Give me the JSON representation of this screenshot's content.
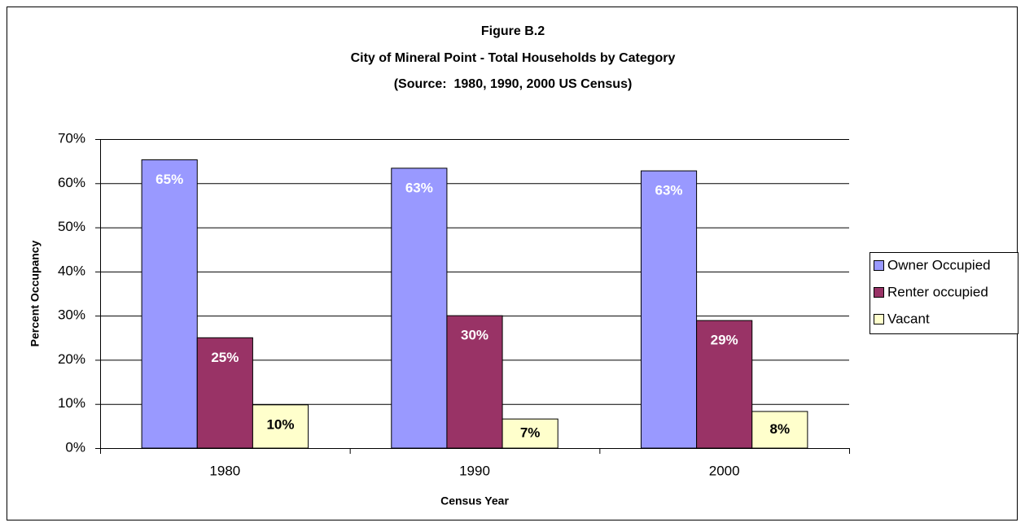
{
  "chart_data": {
    "type": "bar",
    "title": "Figure B.2",
    "subtitle": "City of Mineral Point - Total Households by Category",
    "source": "(Source:  1980, 1990, 2000 US Census)",
    "x_label": "Census Year",
    "y_label": "Percent Occupancy",
    "categories": [
      "1980",
      "1990",
      "2000"
    ],
    "series": [
      {
        "name": "Owner Occupied",
        "color": "#9999ff",
        "values": [
          65.3,
          63.4,
          62.8
        ],
        "value_labels": [
          "65%",
          "63%",
          "63%"
        ]
      },
      {
        "name": "Renter occupied",
        "color": "#993366",
        "values": [
          25.0,
          30.0,
          28.9
        ],
        "value_labels": [
          "25%",
          "30%",
          "29%"
        ]
      },
      {
        "name": "Vacant",
        "color": "#ffffcc",
        "values": [
          9.8,
          6.6,
          8.3
        ],
        "value_labels": [
          "10%",
          "7%",
          "8%"
        ]
      }
    ],
    "ylim": [
      0,
      70
    ],
    "yticks": [
      {
        "value": 0,
        "label": "0%"
      },
      {
        "value": 10,
        "label": "10%"
      },
      {
        "value": 20,
        "label": "20%"
      },
      {
        "value": 30,
        "label": "30%"
      },
      {
        "value": 40,
        "label": "40%"
      },
      {
        "value": 50,
        "label": "50%"
      },
      {
        "value": 60,
        "label": "60%"
      },
      {
        "value": 70,
        "label": "70%"
      }
    ],
    "grid": true,
    "legend": "right"
  }
}
